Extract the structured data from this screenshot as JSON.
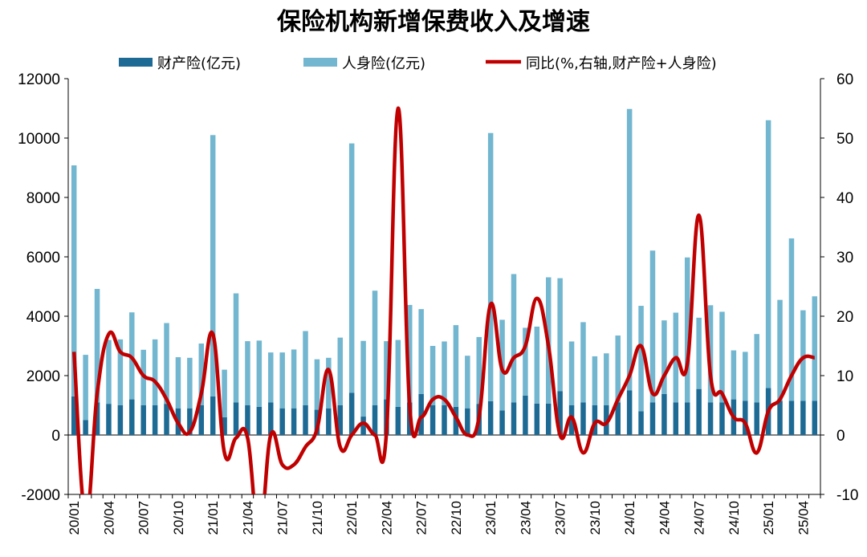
{
  "chart_data": {
    "type": "bar",
    "title": "保险机构新增保费收入及增速",
    "legend": [
      "财产险(亿元)",
      "人身险(亿元)",
      "同比(%,右轴,财产险+人身险)"
    ],
    "legend_position": "top",
    "colors": {
      "property": "#1d6a94",
      "life": "#72b6d0",
      "yoy": "#c00000",
      "axis": "#000000"
    },
    "y_left": {
      "min": -2000,
      "max": 12000,
      "step": 2000
    },
    "y_right": {
      "min": -10,
      "max": 60,
      "step": 10
    },
    "x_tick_labels": [
      "20/01",
      "20/04",
      "20/07",
      "20/10",
      "21/01",
      "21/04",
      "21/07",
      "21/10",
      "22/01",
      "22/04",
      "22/07",
      "22/10",
      "23/01",
      "23/04",
      "23/07",
      "23/10",
      "24/01",
      "24/04",
      "24/07",
      "24/10",
      "25/01",
      "25/04"
    ],
    "x_tick_every": 3,
    "categories": [
      "20/01",
      "20/02",
      "20/03",
      "20/04",
      "20/05",
      "20/06",
      "20/07",
      "20/08",
      "20/09",
      "20/10",
      "20/11",
      "20/12",
      "21/01",
      "21/02",
      "21/03",
      "21/04",
      "21/05",
      "21/06",
      "21/07",
      "21/08",
      "21/09",
      "21/10",
      "21/11",
      "21/12",
      "22/01",
      "22/02",
      "22/03",
      "22/04",
      "22/05",
      "22/06",
      "22/07",
      "22/08",
      "22/09",
      "22/10",
      "22/11",
      "22/12",
      "23/01",
      "23/02",
      "23/03",
      "23/04",
      "23/05",
      "23/06",
      "23/07",
      "23/08",
      "23/09",
      "23/10",
      "23/11",
      "23/12",
      "24/01",
      "24/02",
      "24/03",
      "24/04",
      "24/05",
      "24/06",
      "24/07",
      "24/08",
      "24/09",
      "24/10",
      "24/11",
      "24/12",
      "25/01",
      "25/02",
      "25/03",
      "25/04",
      "25/05"
    ],
    "series": [
      {
        "name": "财产险(亿元)",
        "type": "bar",
        "values": [
          1300,
          500,
          1100,
          1050,
          1000,
          1200,
          1000,
          1000,
          1050,
          900,
          900,
          1000,
          1300,
          600,
          1100,
          1000,
          950,
          1100,
          900,
          900,
          1000,
          850,
          900,
          1000,
          1420,
          620,
          1000,
          1200,
          950,
          1100,
          1380,
          1000,
          1000,
          950,
          900,
          1050,
          1140,
          830,
          1100,
          1330,
          1060,
          1060,
          1480,
          1000,
          1100,
          1000,
          1000,
          1100,
          1500,
          800,
          1100,
          1380,
          1100,
          1100,
          1550,
          1100,
          1100,
          1200,
          1150,
          1100,
          1580,
          1150,
          1150,
          1150,
          1150
        ]
      },
      {
        "name": "人身险(亿元)",
        "type": "bar",
        "values": [
          7780,
          2200,
          3820,
          2150,
          2220,
          2930,
          1870,
          2220,
          2720,
          1720,
          1700,
          2080,
          8800,
          1600,
          3670,
          2160,
          2230,
          1680,
          1880,
          1980,
          2500,
          1700,
          1700,
          2280,
          8400,
          2550,
          3860,
          1960,
          2250,
          3280,
          2860,
          2000,
          2150,
          2750,
          1770,
          2250,
          9030,
          3050,
          4320,
          2280,
          2590,
          4250,
          3800,
          2150,
          2700,
          1650,
          1750,
          2250,
          9480,
          3550,
          5110,
          2480,
          3020,
          4880,
          2400,
          3270,
          3050,
          1650,
          1650,
          2300,
          9020,
          3400,
          5470,
          3050,
          3520
        ]
      },
      {
        "name": "同比(%,右轴,财产险+人身险)",
        "type": "line",
        "axis": "right",
        "values": [
          14,
          -14,
          7,
          17,
          14,
          13,
          10,
          9,
          6,
          2,
          0.5,
          7,
          17,
          -3,
          -0.5,
          -0.5,
          -17,
          0,
          -5,
          -5,
          -2,
          1,
          11,
          -2,
          0,
          2,
          0,
          0.5,
          55,
          5,
          3,
          6,
          6,
          3,
          0,
          3,
          22,
          11,
          13,
          15,
          23,
          15,
          0,
          3,
          -3,
          2,
          2,
          6,
          10,
          15,
          7,
          10,
          13,
          12,
          37,
          10,
          7,
          3,
          2,
          -3,
          4,
          6,
          10,
          13,
          13
        ]
      }
    ]
  }
}
